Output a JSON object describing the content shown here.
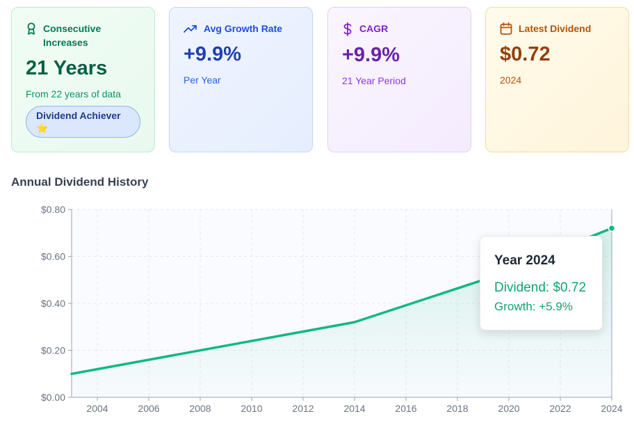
{
  "cards": {
    "consecutive": {
      "label": "Consecutive Increases",
      "value": "21 Years",
      "sub": "From 22 years of data",
      "badge": "Dividend Achiever",
      "badge_star": "⭐",
      "icon": "award-icon"
    },
    "growth": {
      "label": "Avg Growth Rate",
      "value": "+9.9%",
      "sub": "Per Year",
      "icon": "trending-up-icon"
    },
    "cagr": {
      "label": "CAGR",
      "value": "+9.9%",
      "sub": "21 Year Period",
      "icon": "dollar-icon"
    },
    "latest": {
      "label": "Latest Dividend",
      "value": "$0.72",
      "sub": "2024",
      "icon": "calendar-icon"
    }
  },
  "chart_title": "Annual Dividend History",
  "tooltip": {
    "year": "Year 2024",
    "dividend": "Dividend: $0.72",
    "growth": "Growth: +5.9%"
  },
  "colors": {
    "line": "#10b981",
    "green_accent": "#047857",
    "blue_accent": "#1d4ed8",
    "purple_accent": "#7e22ce",
    "amber_accent": "#b45309"
  },
  "chart_data": {
    "type": "area",
    "title": "Annual Dividend History",
    "xlabel": "",
    "ylabel": "",
    "x": [
      2003,
      2014,
      2019,
      2024
    ],
    "values": [
      0.1,
      0.32,
      0.5,
      0.72
    ],
    "xlim": [
      2003,
      2024
    ],
    "ylim": [
      0,
      0.8
    ],
    "x_ticks": [
      "2004",
      "2006",
      "2008",
      "2010",
      "2012",
      "2014",
      "2016",
      "2018",
      "2020",
      "2022",
      "2024"
    ],
    "y_ticks": [
      "$0.00",
      "$0.20",
      "$0.40",
      "$0.60",
      "$0.80"
    ],
    "grid": true,
    "highlight": {
      "x": 2024,
      "value": 0.72
    }
  }
}
